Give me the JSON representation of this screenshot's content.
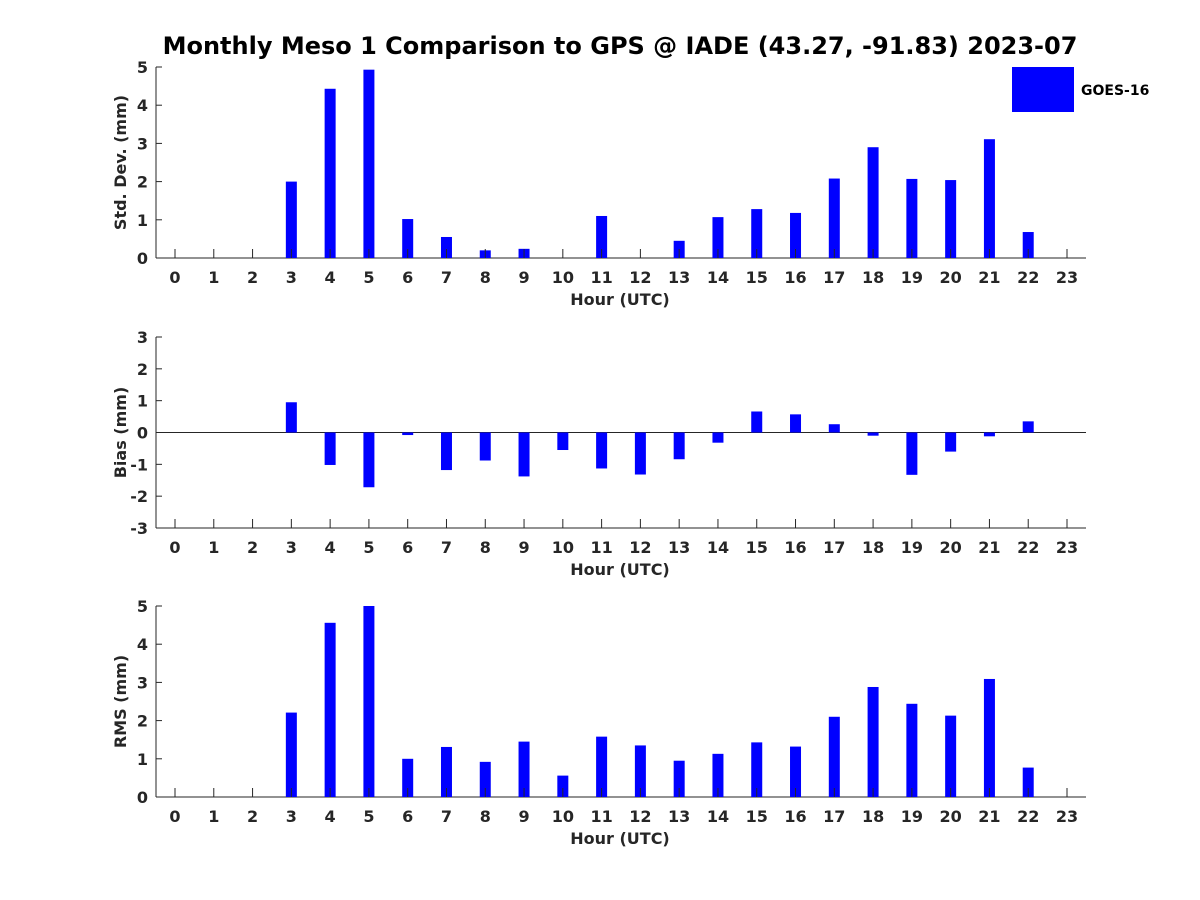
{
  "title": "Monthly Meso 1 Comparison to GPS @ IADE (43.27, -91.83) 2023-07",
  "legend": {
    "label": "GOES-16",
    "color": "#0000ff",
    "position": "top-right"
  },
  "colors": {
    "bar": "#0000ff",
    "axis": "#262626",
    "background": "#ffffff"
  },
  "chart_data": [
    {
      "type": "bar",
      "name": "std",
      "title": "",
      "xlabel": "Hour (UTC)",
      "ylabel": "Std. Dev. (mm)",
      "ylim": [
        0,
        5
      ],
      "yticks": [
        0,
        1,
        2,
        3,
        4,
        5
      ],
      "grid": false,
      "categories": [
        "0",
        "1",
        "2",
        "3",
        "4",
        "5",
        "6",
        "7",
        "8",
        "9",
        "10",
        "11",
        "12",
        "13",
        "14",
        "15",
        "16",
        "17",
        "18",
        "19",
        "20",
        "21",
        "22",
        "23"
      ],
      "series": [
        {
          "name": "GOES-16",
          "values": [
            0,
            0,
            0,
            2.0,
            4.43,
            4.93,
            1.02,
            0.55,
            0.2,
            0.24,
            0,
            1.1,
            0,
            0.45,
            1.07,
            1.28,
            1.18,
            2.08,
            2.9,
            2.07,
            2.04,
            3.11,
            0.68,
            0
          ]
        }
      ]
    },
    {
      "type": "bar",
      "name": "bias",
      "title": "",
      "xlabel": "Hour (UTC)",
      "ylabel": "Bias (mm)",
      "ylim": [
        -3,
        3
      ],
      "yticks": [
        -3,
        -2,
        -1,
        0,
        1,
        2,
        3
      ],
      "zero_line": true,
      "grid": false,
      "categories": [
        "0",
        "1",
        "2",
        "3",
        "4",
        "5",
        "6",
        "7",
        "8",
        "9",
        "10",
        "11",
        "12",
        "13",
        "14",
        "15",
        "16",
        "17",
        "18",
        "19",
        "20",
        "21",
        "22",
        "23"
      ],
      "series": [
        {
          "name": "GOES-16",
          "values": [
            0,
            0,
            0,
            0.95,
            -1.02,
            -1.72,
            -0.08,
            -1.18,
            -0.88,
            -1.38,
            -0.55,
            -1.13,
            -1.32,
            -0.84,
            -0.32,
            0.66,
            0.57,
            0.26,
            -0.1,
            -1.33,
            -0.6,
            -0.12,
            0.35,
            0
          ]
        }
      ]
    },
    {
      "type": "bar",
      "name": "rms",
      "title": "",
      "xlabel": "Hour (UTC)",
      "ylabel": "RMS (mm)",
      "ylim": [
        0,
        5
      ],
      "yticks": [
        0,
        1,
        2,
        3,
        4,
        5
      ],
      "grid": false,
      "categories": [
        "0",
        "1",
        "2",
        "3",
        "4",
        "5",
        "6",
        "7",
        "8",
        "9",
        "10",
        "11",
        "12",
        "13",
        "14",
        "15",
        "16",
        "17",
        "18",
        "19",
        "20",
        "21",
        "22",
        "23"
      ],
      "series": [
        {
          "name": "GOES-16",
          "values": [
            0,
            0,
            0,
            2.21,
            4.56,
            5.0,
            1.0,
            1.31,
            0.92,
            1.45,
            0.56,
            1.58,
            1.35,
            0.95,
            1.13,
            1.43,
            1.32,
            2.1,
            2.88,
            2.44,
            2.13,
            3.09,
            0.77,
            0
          ]
        }
      ]
    }
  ]
}
